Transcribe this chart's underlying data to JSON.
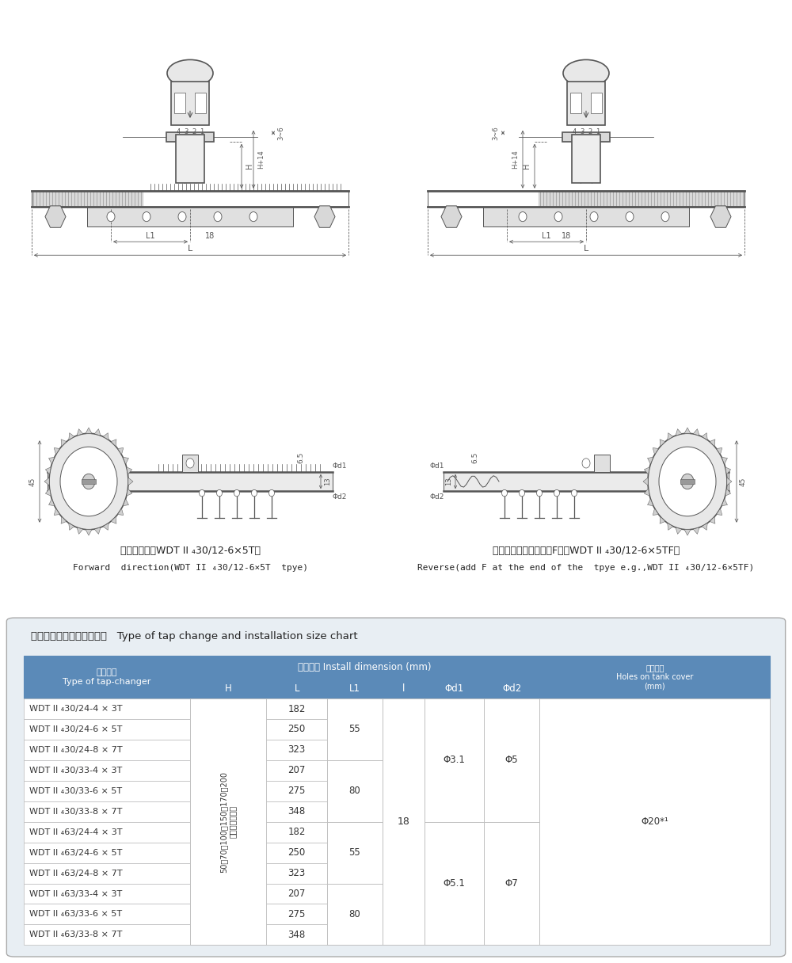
{
  "table_title_cn": "开关型号、安装尺寸对照表",
  "table_title_en": "Type of tap change and installation size chart",
  "install_dim_header": "安装尺寸 Install dimension (mm)",
  "rows": [
    "WDT II ₄30/24-4 × 3T",
    "WDT II ₄30/24-6 × 5T",
    "WDT II ₄30/24-8 × 7T",
    "WDT II ₄30/33-4 × 3T",
    "WDT II ₄30/33-6 × 5T",
    "WDT II ₄30/33-8 × 7T",
    "WDT II ₄63/24-4 × 3T",
    "WDT II ₄63/24-6 × 5T",
    "WDT II ₄63/24-8 × 7T",
    "WDT II ₄63/33-4 × 3T",
    "WDT II ₄63/33-6 × 5T",
    "WDT II ₄63/33-8 × 7T"
  ],
  "L_values": [
    "182",
    "250",
    "323",
    "207",
    "275",
    "348",
    "182",
    "250",
    "323",
    "207",
    "275",
    "348"
  ],
  "L1_groups": [
    [
      0,
      3,
      "55"
    ],
    [
      3,
      6,
      "80"
    ],
    [
      6,
      9,
      "55"
    ],
    [
      9,
      12,
      "80"
    ]
  ],
  "H_text": "50、70、100、150、170、200\n（供用户选择）",
  "l_value": "18",
  "phi_d1_groups": [
    [
      0,
      6,
      "Φ3.1"
    ],
    [
      6,
      12,
      "Φ5.1"
    ]
  ],
  "phi_d2_groups": [
    [
      0,
      6,
      "Φ5"
    ],
    [
      6,
      12,
      "Φ7"
    ]
  ],
  "holes_value": "Φ20*¹",
  "forward_cn": "正向（型号如WDT II ₄30/12-6×5T）",
  "forward_en": "Forward  direction(WDT II ₄30/12-6×5T  tpye)",
  "reverse_cn": "反向（型号在正向后加F：如WDT II ₄30/12-6×5TF）",
  "reverse_en": "Reverse(add F at the end of the  tpye e.g.,WDT II ₄30/12-6×5TF)",
  "header_bg": "#5b8ab8",
  "header_fg": "#ffffff",
  "border_color": "#5b8ab8",
  "data_border": "#bbbbbb",
  "table_outer_bg": "#e8eef3"
}
